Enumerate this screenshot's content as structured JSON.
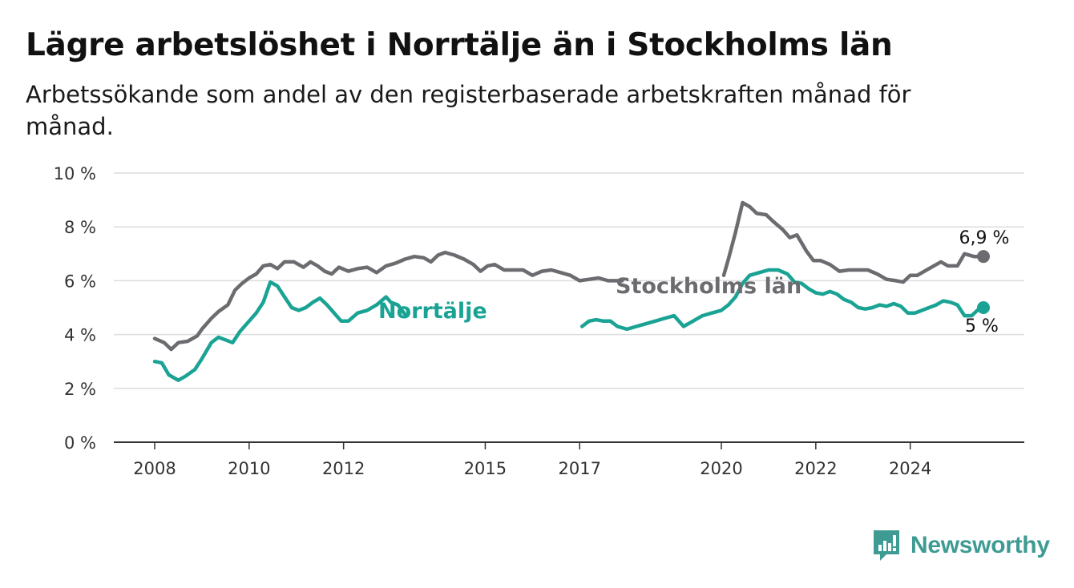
{
  "header": {
    "title": "Lägre arbetslöshet i Norrtälje än i Stockholms län",
    "subtitle": "Arbetssökande som andel av den registerbaserade arbetskraften månad för månad."
  },
  "brand": {
    "name": "Newsworthy",
    "color": "#3e9b93"
  },
  "chart_data": {
    "type": "line",
    "title": "Lägre arbetslöshet i Norrtälje än i Stockholms län",
    "subtitle": "Arbetssökande som andel av den registerbaserade arbetskraften månad för månad.",
    "xlabel": "",
    "ylabel": "",
    "xlim": [
      2008,
      2024.8
    ],
    "ylim": [
      0,
      10
    ],
    "x_ticks": [
      2008,
      2010,
      2012,
      2015,
      2017,
      2020,
      2022,
      2024
    ],
    "y_ticks": [
      0,
      2,
      4,
      6,
      8,
      10
    ],
    "y_tick_labels": [
      "0 %",
      "2 %",
      "4 %",
      "6 %",
      "8 %",
      "10 %"
    ],
    "grid": true,
    "legend": "inline labels",
    "series": [
      {
        "name": "Stockholms län",
        "color": "#6b6b70",
        "end_label": "6,9 %",
        "points": [
          [
            2008.0,
            3.85
          ],
          [
            2008.2,
            3.7
          ],
          [
            2008.35,
            3.45
          ],
          [
            2008.5,
            3.7
          ],
          [
            2008.7,
            3.75
          ],
          [
            2008.9,
            3.95
          ],
          [
            2009.0,
            4.2
          ],
          [
            2009.2,
            4.6
          ],
          [
            2009.35,
            4.85
          ],
          [
            2009.55,
            5.1
          ],
          [
            2009.7,
            5.65
          ],
          [
            2009.85,
            5.9
          ],
          [
            2010.0,
            6.1
          ],
          [
            2010.15,
            6.25
          ],
          [
            2010.3,
            6.55
          ],
          [
            2010.45,
            6.6
          ],
          [
            2010.6,
            6.45
          ],
          [
            2010.75,
            6.7
          ],
          [
            2010.95,
            6.7
          ],
          [
            2011.15,
            6.5
          ],
          [
            2011.3,
            6.7
          ],
          [
            2011.45,
            6.55
          ],
          [
            2011.6,
            6.35
          ],
          [
            2011.75,
            6.25
          ],
          [
            2011.9,
            6.5
          ],
          [
            2012.1,
            6.35
          ],
          [
            2012.3,
            6.45
          ],
          [
            2012.5,
            6.5
          ],
          [
            2012.7,
            6.3
          ],
          [
            2012.9,
            6.55
          ],
          [
            2013.1,
            6.65
          ],
          [
            2013.3,
            6.8
          ],
          [
            2013.5,
            6.9
          ],
          [
            2013.7,
            6.85
          ],
          [
            2013.85,
            6.7
          ],
          [
            2014.0,
            6.95
          ],
          [
            2014.15,
            7.05
          ],
          [
            2014.35,
            6.95
          ],
          [
            2014.55,
            6.8
          ],
          [
            2014.75,
            6.6
          ],
          [
            2014.9,
            6.35
          ],
          [
            2015.05,
            6.55
          ],
          [
            2015.2,
            6.6
          ],
          [
            2015.4,
            6.4
          ],
          [
            2015.6,
            6.4
          ],
          [
            2015.8,
            6.4
          ],
          [
            2016.0,
            6.2
          ],
          [
            2016.2,
            6.35
          ],
          [
            2016.4,
            6.4
          ],
          [
            2016.6,
            6.3
          ],
          [
            2016.8,
            6.2
          ],
          [
            2017.0,
            6.0
          ],
          [
            2017.2,
            6.05
          ],
          [
            2017.4,
            6.1
          ],
          [
            2017.6,
            6.0
          ],
          [
            2017.9,
            6.0
          ]
        ],
        "label_gap": [
          2018.0,
          2019.9
        ],
        "points_after_gap": [
          [
            2020.05,
            6.2
          ],
          [
            2020.15,
            6.8
          ],
          [
            2020.3,
            7.8
          ],
          [
            2020.45,
            8.9
          ],
          [
            2020.6,
            8.75
          ],
          [
            2020.75,
            8.5
          ],
          [
            2020.95,
            8.45
          ],
          [
            2021.1,
            8.2
          ],
          [
            2021.3,
            7.9
          ],
          [
            2021.45,
            7.6
          ],
          [
            2021.6,
            7.7
          ],
          [
            2021.8,
            7.1
          ],
          [
            2021.95,
            6.75
          ],
          [
            2022.1,
            6.75
          ],
          [
            2022.3,
            6.6
          ],
          [
            2022.5,
            6.35
          ],
          [
            2022.7,
            6.4
          ],
          [
            2022.9,
            6.4
          ],
          [
            2023.1,
            6.4
          ],
          [
            2023.3,
            6.25
          ],
          [
            2023.5,
            6.05
          ],
          [
            2023.7,
            6.0
          ],
          [
            2023.85,
            5.95
          ],
          [
            2024.0,
            6.2
          ],
          [
            2024.15,
            6.2
          ],
          [
            2024.3,
            6.35
          ],
          [
            2024.5,
            6.55
          ],
          [
            2024.65,
            6.7
          ],
          [
            2024.8,
            6.55
          ],
          [
            2025.0,
            6.55
          ],
          [
            2025.15,
            7.0
          ],
          [
            2025.35,
            6.9
          ],
          [
            2025.55,
            6.9
          ]
        ]
      },
      {
        "name": "Norrtälje",
        "color": "#1aa394",
        "end_label": "5 %",
        "points": [
          [
            2008.0,
            3.0
          ],
          [
            2008.15,
            2.95
          ],
          [
            2008.3,
            2.5
          ],
          [
            2008.5,
            2.3
          ],
          [
            2008.65,
            2.45
          ],
          [
            2008.85,
            2.7
          ],
          [
            2009.0,
            3.1
          ],
          [
            2009.2,
            3.7
          ],
          [
            2009.35,
            3.9
          ],
          [
            2009.5,
            3.8
          ],
          [
            2009.65,
            3.7
          ],
          [
            2009.8,
            4.1
          ],
          [
            2010.0,
            4.5
          ],
          [
            2010.15,
            4.8
          ],
          [
            2010.3,
            5.2
          ],
          [
            2010.45,
            5.95
          ],
          [
            2010.6,
            5.8
          ],
          [
            2010.75,
            5.4
          ],
          [
            2010.9,
            5.0
          ],
          [
            2011.05,
            4.9
          ],
          [
            2011.2,
            5.0
          ],
          [
            2011.35,
            5.2
          ],
          [
            2011.5,
            5.35
          ],
          [
            2011.65,
            5.1
          ],
          [
            2011.8,
            4.8
          ],
          [
            2011.95,
            4.5
          ],
          [
            2012.1,
            4.5
          ],
          [
            2012.3,
            4.8
          ],
          [
            2012.5,
            4.9
          ],
          [
            2012.7,
            5.1
          ],
          [
            2012.9,
            5.4
          ],
          [
            2013.0,
            5.2
          ],
          [
            2013.15,
            5.1
          ],
          [
            2013.3,
            4.75
          ]
        ],
        "label_gap": [
          2013.45,
          2016.9
        ],
        "points_after_gap": [
          [
            2017.05,
            4.3
          ],
          [
            2017.2,
            4.5
          ],
          [
            2017.35,
            4.55
          ],
          [
            2017.5,
            4.5
          ],
          [
            2017.65,
            4.5
          ],
          [
            2017.8,
            4.3
          ],
          [
            2018.0,
            4.2
          ],
          [
            2018.2,
            4.3
          ],
          [
            2018.4,
            4.4
          ],
          [
            2018.6,
            4.5
          ],
          [
            2018.8,
            4.6
          ],
          [
            2019.0,
            4.7
          ],
          [
            2019.2,
            4.3
          ],
          [
            2019.4,
            4.5
          ],
          [
            2019.6,
            4.7
          ],
          [
            2019.8,
            4.8
          ],
          [
            2020.0,
            4.9
          ],
          [
            2020.15,
            5.1
          ],
          [
            2020.3,
            5.4
          ],
          [
            2020.45,
            5.9
          ],
          [
            2020.6,
            6.2
          ],
          [
            2020.8,
            6.3
          ],
          [
            2021.0,
            6.4
          ],
          [
            2021.2,
            6.4
          ],
          [
            2021.4,
            6.25
          ],
          [
            2021.55,
            5.95
          ],
          [
            2021.7,
            5.9
          ],
          [
            2021.85,
            5.7
          ],
          [
            2022.0,
            5.55
          ],
          [
            2022.15,
            5.5
          ],
          [
            2022.3,
            5.6
          ],
          [
            2022.45,
            5.5
          ],
          [
            2022.6,
            5.3
          ],
          [
            2022.75,
            5.2
          ],
          [
            2022.9,
            5.0
          ],
          [
            2023.05,
            4.95
          ],
          [
            2023.2,
            5.0
          ],
          [
            2023.35,
            5.1
          ],
          [
            2023.5,
            5.05
          ],
          [
            2023.65,
            5.15
          ],
          [
            2023.8,
            5.05
          ],
          [
            2023.95,
            4.8
          ],
          [
            2024.1,
            4.8
          ],
          [
            2024.25,
            4.9
          ],
          [
            2024.4,
            5.0
          ],
          [
            2024.55,
            5.1
          ],
          [
            2024.7,
            5.25
          ],
          [
            2024.85,
            5.2
          ],
          [
            2025.0,
            5.1
          ],
          [
            2025.15,
            4.7
          ],
          [
            2025.3,
            4.7
          ],
          [
            2025.45,
            4.95
          ],
          [
            2025.55,
            5.0
          ]
        ]
      }
    ]
  }
}
